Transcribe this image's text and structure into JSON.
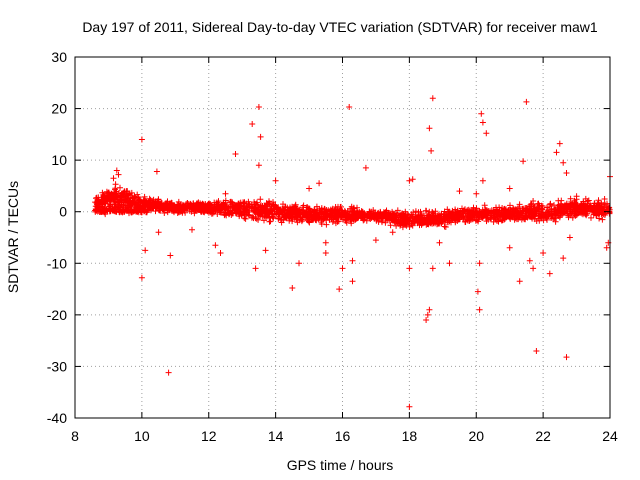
{
  "chart_data": {
    "type": "scatter",
    "title": "Day 197 of 2011, Sidereal Day-to-day VTEC variation (SDTVAR) for receiver maw1",
    "xlabel": "GPS time / hours",
    "ylabel": "SDTVAR / TECUs",
    "xlim": [
      8,
      24
    ],
    "ylim": [
      -40,
      30
    ],
    "xticks": [
      8,
      10,
      12,
      14,
      16,
      18,
      20,
      22,
      24
    ],
    "yticks": [
      -40,
      -30,
      -20,
      -10,
      0,
      10,
      20,
      30
    ],
    "grid": true,
    "marker": "+",
    "color": "#ff0000",
    "dense_band": {
      "x_range": [
        8.6,
        24
      ],
      "centerline": [
        [
          8.6,
          1.5
        ],
        [
          9.3,
          2.5
        ],
        [
          10,
          1.5
        ],
        [
          11,
          0.8
        ],
        [
          12,
          0.8
        ],
        [
          13,
          0.5
        ],
        [
          14,
          0
        ],
        [
          15,
          -0.5
        ],
        [
          16,
          -0.5
        ],
        [
          17,
          -0.8
        ],
        [
          18,
          -1.5
        ],
        [
          19,
          -1.2
        ],
        [
          20,
          -0.5
        ],
        [
          21,
          -0.5
        ],
        [
          22,
          0
        ],
        [
          23,
          0.5
        ],
        [
          24,
          0.5
        ]
      ],
      "half_width": [
        [
          8.6,
          2
        ],
        [
          9.3,
          3.5
        ],
        [
          10,
          2
        ],
        [
          11,
          1.5
        ],
        [
          12,
          1.5
        ],
        [
          13,
          2.5
        ],
        [
          14,
          2.5
        ],
        [
          15,
          2.5
        ],
        [
          16,
          2
        ],
        [
          17,
          1.5
        ],
        [
          18,
          2
        ],
        [
          19,
          2
        ],
        [
          20,
          2
        ],
        [
          21,
          2
        ],
        [
          22,
          2.5
        ],
        [
          23,
          2.5
        ],
        [
          24,
          2.5
        ]
      ],
      "point_count": 2600
    },
    "points": [
      [
        10.0,
        14.0
      ],
      [
        10.0,
        -12.8
      ],
      [
        10.1,
        -7.5
      ],
      [
        10.45,
        7.8
      ],
      [
        10.5,
        -4.0
      ],
      [
        10.8,
        -31.2
      ],
      [
        10.85,
        -8.5
      ],
      [
        12.2,
        -6.5
      ],
      [
        12.35,
        -8.0
      ],
      [
        12.8,
        11.2
      ],
      [
        13.3,
        17.0
      ],
      [
        13.4,
        -11.0
      ],
      [
        13.5,
        20.3
      ],
      [
        13.55,
        14.5
      ],
      [
        13.5,
        9.0
      ],
      [
        13.7,
        -7.5
      ],
      [
        14.0,
        6.0
      ],
      [
        14.5,
        -14.8
      ],
      [
        14.7,
        -10.0
      ],
      [
        15.0,
        4.5
      ],
      [
        15.3,
        5.5
      ],
      [
        15.5,
        -6.0
      ],
      [
        15.5,
        -8.0
      ],
      [
        15.9,
        -15.0
      ],
      [
        16.0,
        -11.0
      ],
      [
        16.2,
        20.3
      ],
      [
        16.3,
        -13.5
      ],
      [
        16.3,
        -9.5
      ],
      [
        16.7,
        8.5
      ],
      [
        17.0,
        -5.5
      ],
      [
        18.0,
        6.0
      ],
      [
        18.0,
        -11.0
      ],
      [
        18.0,
        -37.8
      ],
      [
        18.1,
        6.3
      ],
      [
        18.5,
        -21.0
      ],
      [
        18.55,
        -20.0
      ],
      [
        18.6,
        -19.0
      ],
      [
        18.6,
        16.2
      ],
      [
        18.65,
        11.8
      ],
      [
        18.7,
        22.0
      ],
      [
        18.7,
        -11.0
      ],
      [
        18.9,
        -6.0
      ],
      [
        19.2,
        -10.0
      ],
      [
        20.0,
        3.5
      ],
      [
        20.05,
        -15.5
      ],
      [
        20.1,
        -19.0
      ],
      [
        20.1,
        -10.0
      ],
      [
        20.15,
        19.0
      ],
      [
        20.2,
        17.3
      ],
      [
        20.3,
        15.2
      ],
      [
        20.2,
        6.0
      ],
      [
        21.0,
        -7.0
      ],
      [
        21.3,
        -13.5
      ],
      [
        21.4,
        9.8
      ],
      [
        21.5,
        21.3
      ],
      [
        21.6,
        -9.5
      ],
      [
        21.7,
        -11.0
      ],
      [
        21.8,
        -27.0
      ],
      [
        22.0,
        -8.0
      ],
      [
        22.2,
        -12.0
      ],
      [
        22.4,
        11.5
      ],
      [
        22.5,
        13.2
      ],
      [
        22.6,
        9.5
      ],
      [
        22.6,
        -9.0
      ],
      [
        22.7,
        -28.2
      ],
      [
        22.7,
        7.5
      ],
      [
        22.8,
        -5.0
      ],
      [
        23.0,
        3.0
      ],
      [
        23.9,
        -7.0
      ],
      [
        23.95,
        -6.0
      ],
      [
        24.0,
        6.8
      ],
      [
        9.25,
        8.0
      ],
      [
        9.3,
        7.2
      ],
      [
        9.15,
        6.5
      ],
      [
        11.5,
        -3.5
      ],
      [
        12.5,
        3.5
      ],
      [
        17.5,
        -4.0
      ],
      [
        19.5,
        4.0
      ],
      [
        21.0,
        4.5
      ]
    ]
  }
}
